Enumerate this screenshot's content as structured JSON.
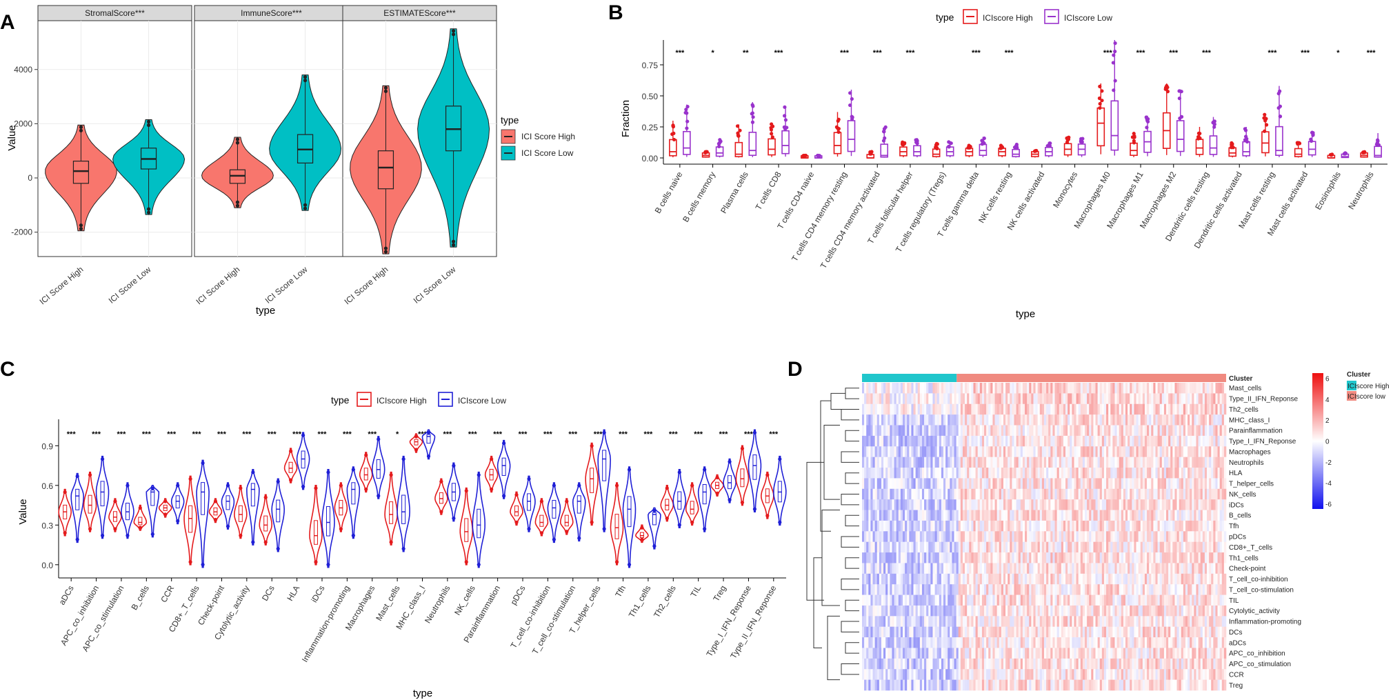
{
  "panel_letters": [
    "A",
    "B",
    "C",
    "D"
  ],
  "chart_data": [
    {
      "panel": "A",
      "type": "violin",
      "facets": [
        "StromalScore***",
        "ImmuneScore***",
        "ESTIMATEScore***"
      ],
      "categories": [
        "ICI Score High",
        "ICI Score Low"
      ],
      "xlabel": "type",
      "ylabel": "Value",
      "ylim": [
        -2900,
        5800
      ],
      "yticks": [
        -2000,
        0,
        2000,
        4000
      ],
      "legend": {
        "title": "type",
        "entries": [
          "ICI Score High",
          "ICI Score Low"
        ],
        "colors": [
          "#f8766d",
          "#00bfc4"
        ],
        "position": "right"
      },
      "series": [
        {
          "facet": "StromalScore***",
          "group": "ICI Score High",
          "min": -1950,
          "q1": -200,
          "median": 250,
          "q3": 620,
          "max": 1950
        },
        {
          "facet": "StromalScore***",
          "group": "ICI Score Low",
          "min": -1350,
          "q1": 330,
          "median": 700,
          "q3": 1100,
          "max": 2150
        },
        {
          "facet": "ImmuneScore***",
          "group": "ICI Score High",
          "min": -1100,
          "q1": -200,
          "median": 80,
          "q3": 300,
          "max": 1500
        },
        {
          "facet": "ImmuneScore***",
          "group": "ICI Score Low",
          "min": -1200,
          "q1": 550,
          "median": 1050,
          "q3": 1600,
          "max": 3800
        },
        {
          "facet": "ESTIMATEScore***",
          "group": "ICI Score High",
          "min": -2800,
          "q1": -400,
          "median": 380,
          "q3": 1000,
          "max": 3400
        },
        {
          "facet": "ESTIMATEScore***",
          "group": "ICI Score Low",
          "min": -2550,
          "q1": 1000,
          "median": 1800,
          "q3": 2650,
          "max": 5500
        }
      ]
    },
    {
      "panel": "B",
      "type": "box",
      "categories": [
        "B cells naive",
        "B cells memory",
        "Plasma cells",
        "T cells CD8",
        "T cells CD4 naive",
        "T cells CD4 memory resting",
        "T cells CD4 memory activated",
        "T cells follicular helper",
        "T cells regulatory (Tregs)",
        "T cells gamma delta",
        "NK cells resting",
        "NK cells activated",
        "Monocytes",
        "Macrophages M0",
        "Macrophages M1",
        "Macrophages M2",
        "Dendritic cells resting",
        "Dendritic cells activated",
        "Mast cells resting",
        "Mast cells activated",
        "Eosinophils",
        "Neutrophils"
      ],
      "significance": [
        "***",
        "*",
        "**",
        "***",
        "",
        "***",
        "***",
        "***",
        "",
        "***",
        "***",
        "",
        "",
        "***",
        "***",
        "***",
        "***",
        "",
        "***",
        "***",
        "*",
        "***"
      ],
      "xlabel": "type",
      "ylabel": "Fraction",
      "ylim": [
        -0.05,
        0.95
      ],
      "yticks": [
        0.0,
        0.25,
        0.5,
        0.75
      ],
      "legend": {
        "title": "type",
        "entries": [
          "ICIscore High",
          "ICIscore Low"
        ],
        "colors": [
          "#e41a1c",
          "#9932cc"
        ],
        "position": "top"
      },
      "series": [
        {
          "name": "ICIscore High",
          "median": [
            0.05,
            0.02,
            0.03,
            0.07,
            0.0,
            0.1,
            0.0,
            0.05,
            0.03,
            0.05,
            0.05,
            0.03,
            0.07,
            0.28,
            0.06,
            0.22,
            0.08,
            0.04,
            0.12,
            0.03,
            0.0,
            0.02
          ],
          "max": [
            0.3,
            0.05,
            0.27,
            0.28,
            0.02,
            0.37,
            0.05,
            0.13,
            0.12,
            0.1,
            0.1,
            0.06,
            0.17,
            0.6,
            0.2,
            0.6,
            0.25,
            0.13,
            0.35,
            0.13,
            0.03,
            0.05
          ]
        },
        {
          "name": "ICIscore Low",
          "median": [
            0.08,
            0.04,
            0.06,
            0.1,
            0.0,
            0.15,
            0.02,
            0.05,
            0.05,
            0.06,
            0.03,
            0.05,
            0.07,
            0.18,
            0.13,
            0.15,
            0.08,
            0.05,
            0.06,
            0.07,
            0.01,
            0.02
          ],
          "max": [
            0.43,
            0.15,
            0.45,
            0.41,
            0.02,
            0.55,
            0.25,
            0.16,
            0.13,
            0.17,
            0.11,
            0.12,
            0.16,
            0.95,
            0.34,
            0.55,
            0.33,
            0.25,
            0.58,
            0.22,
            0.04,
            0.2
          ]
        }
      ]
    },
    {
      "panel": "C",
      "type": "violin",
      "categories": [
        "aDCs",
        "APC_co_inhibition",
        "APC_co_stimulation",
        "B_cells",
        "CCR",
        "CD8+_T_cells",
        "Check-point",
        "Cytolytic_activity",
        "DCs",
        "HLA",
        "iDCs",
        "Inflammation-promoting",
        "Macrophages",
        "Mast_cells",
        "MHC_class_I",
        "Neutrophils",
        "NK_cells",
        "Parainflammation",
        "pDCs",
        "T_cell_co-inhibition",
        "T_cell_co-stimulation",
        "T_helper_cells",
        "Tfh",
        "Th1_cells",
        "Th2_cells",
        "TIL",
        "Treg",
        "Type_I_IFN_Reponse",
        "Type_II_IFN_Reponse"
      ],
      "significance": [
        "***",
        "***",
        "***",
        "***",
        "***",
        "***",
        "***",
        "***",
        "***",
        "***",
        "***",
        "***",
        "***",
        "*",
        "***",
        "***",
        "***",
        "***",
        "***",
        "***",
        "***",
        "***",
        "***",
        "***",
        "***",
        "***",
        "***",
        "***",
        "***"
      ],
      "xlabel": "type",
      "ylabel": "Value",
      "ylim": [
        -0.1,
        1.1
      ],
      "yticks": [
        0.0,
        0.3,
        0.6,
        0.9
      ],
      "legend": {
        "title": "type",
        "entries": [
          "ICIscore High",
          "ICIscore Low"
        ],
        "colors": [
          "#e41a1c",
          "#1f1fd6"
        ],
        "position": "top"
      },
      "series": [
        {
          "name": "ICIscore High",
          "median": [
            0.4,
            0.45,
            0.36,
            0.32,
            0.43,
            0.35,
            0.4,
            0.38,
            0.3,
            0.73,
            0.22,
            0.43,
            0.68,
            0.38,
            0.93,
            0.5,
            0.25,
            0.68,
            0.4,
            0.32,
            0.32,
            0.65,
            0.28,
            0.22,
            0.45,
            0.42,
            0.6,
            0.65,
            0.52
          ],
          "min": [
            0.22,
            0.25,
            0.25,
            0.26,
            0.36,
            0.0,
            0.32,
            0.2,
            0.15,
            0.62,
            0.0,
            0.25,
            0.55,
            0.15,
            0.85,
            0.38,
            0.0,
            0.55,
            0.3,
            0.22,
            0.23,
            0.3,
            0.0,
            0.17,
            0.33,
            0.3,
            0.52,
            0.45,
            0.35
          ],
          "max": [
            0.57,
            0.7,
            0.5,
            0.45,
            0.5,
            0.67,
            0.5,
            0.6,
            0.53,
            0.88,
            0.6,
            0.62,
            0.85,
            0.7,
            0.99,
            0.65,
            0.58,
            0.82,
            0.55,
            0.5,
            0.5,
            0.92,
            0.62,
            0.3,
            0.6,
            0.62,
            0.68,
            0.9,
            0.7
          ]
        },
        {
          "name": "ICIscore Low",
          "median": [
            0.52,
            0.55,
            0.4,
            0.55,
            0.48,
            0.55,
            0.48,
            0.57,
            0.42,
            0.8,
            0.32,
            0.57,
            0.72,
            0.4,
            0.97,
            0.55,
            0.3,
            0.75,
            0.48,
            0.43,
            0.48,
            0.8,
            0.42,
            0.38,
            0.48,
            0.55,
            0.62,
            0.75,
            0.55
          ]
        }
      ]
    },
    {
      "panel": "D",
      "type": "heatmap",
      "rows": [
        "Mast_cells",
        "Type_II_IFN_Reponse",
        "Th2_cells",
        "MHC_class_I",
        "Parainflammation",
        "Type_I_IFN_Reponse",
        "Macrophages",
        "Neutrophils",
        "HLA",
        "T_helper_cells",
        "NK_cells",
        "iDCs",
        "B_cells",
        "Tfh",
        "pDCs",
        "CD8+_T_cells",
        "Th1_cells",
        "Check-point",
        "T_cell_co-inhibition",
        "T_cell_co-stimulation",
        "TIL",
        "Cytolytic_activity",
        "Inflammation-promoting",
        "DCs",
        "aDCs",
        "APC_co_inhibition",
        "APC_co_stimulation",
        "CCR",
        "Treg"
      ],
      "annotation_title": "Cluster",
      "cluster_legend": {
        "title": "Cluster",
        "entries": [
          "ICIscore High",
          "ICIscore low"
        ],
        "colors": [
          "#20c6cc",
          "#f08a80"
        ]
      },
      "color_scale": {
        "ticks": [
          6,
          4,
          2,
          0,
          -2,
          -4,
          -6
        ],
        "low_color": "#1010ee",
        "mid_color": "#ffffff",
        "high_color": "#ee1010",
        "range": [
          -6.5,
          6.5
        ]
      },
      "groups": [
        {
          "name": "ICIscore High",
          "fraction": 0.26,
          "mean_value": -1.2
        },
        {
          "name": "ICIscore low",
          "fraction": 0.74,
          "mean_value": 0.7
        }
      ]
    }
  ]
}
